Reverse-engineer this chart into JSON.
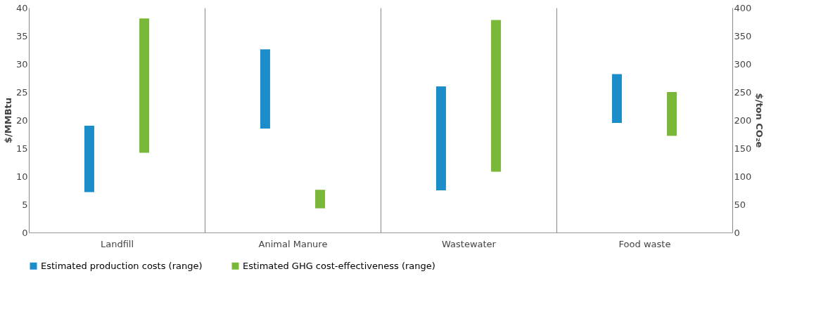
{
  "chart_data": {
    "type": "bar",
    "categories": [
      "Landfill",
      "Animal Manure",
      "Wastewater",
      "Food waste"
    ],
    "ylabel": "$/MMBtu",
    "y2label": "$/ton CO₂e",
    "ylim": [
      0,
      40
    ],
    "yticks": [
      0,
      5,
      10,
      15,
      20,
      25,
      30,
      35,
      40
    ],
    "y2lim": [
      0,
      400
    ],
    "y2ticks": [
      0,
      50,
      100,
      150,
      200,
      250,
      300,
      350,
      400
    ],
    "grid": "x",
    "legend": "bottom",
    "series": [
      {
        "name": "Estimated production costs (range)",
        "color": "#1b8ec9",
        "base": [
          7.2,
          18.5,
          7.5,
          19.5
        ],
        "values": [
          11.8,
          14.1,
          18.5,
          8.7
        ]
      },
      {
        "name": "Estimated GHG cost-effectiveness (range)",
        "color": "#7ab83a",
        "axis": "y2",
        "base": [
          142,
          43,
          108,
          172
        ],
        "values": [
          239,
          33,
          270,
          78
        ]
      }
    ]
  }
}
